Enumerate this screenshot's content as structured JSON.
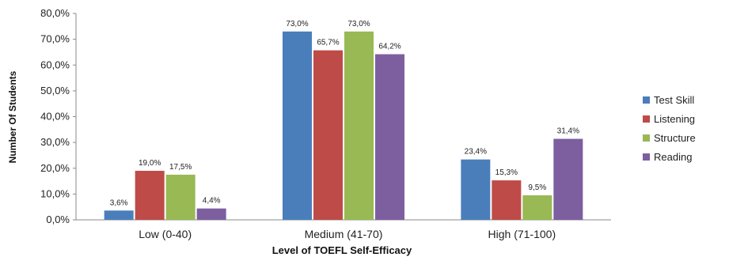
{
  "chart_data": {
    "type": "bar",
    "xlabel": "Level of TOEFL Self-Efficacy",
    "ylabel": "Number Of Students",
    "ylim": [
      0,
      80
    ],
    "yticks": [
      "0,0%",
      "10,0%",
      "20,0%",
      "30,0%",
      "40,0%",
      "50,0%",
      "60,0%",
      "70,0%",
      "80,0%"
    ],
    "categories": [
      "Low (0-40)",
      "Medium (41-70)",
      "High (71-100)"
    ],
    "legend_position": "right",
    "grid": false,
    "series": [
      {
        "name": "Test Skill",
        "color": "#4a7ebb",
        "values": [
          3.6,
          73.0,
          23.4
        ],
        "labels": [
          "3,6%",
          "73,0%",
          "23,4%"
        ]
      },
      {
        "name": "Listening",
        "color": "#be4b48",
        "values": [
          19.0,
          65.7,
          15.3
        ],
        "labels": [
          "19,0%",
          "65,7%",
          "15,3%"
        ]
      },
      {
        "name": "Structure",
        "color": "#98b954",
        "values": [
          17.5,
          73.0,
          9.5
        ],
        "labels": [
          "17,5%",
          "73,0%",
          "9,5%"
        ]
      },
      {
        "name": "Reading",
        "color": "#7d5fa0",
        "values": [
          4.4,
          64.2,
          31.4
        ],
        "labels": [
          "4,4%",
          "64,2%",
          "31,4%"
        ]
      }
    ]
  }
}
